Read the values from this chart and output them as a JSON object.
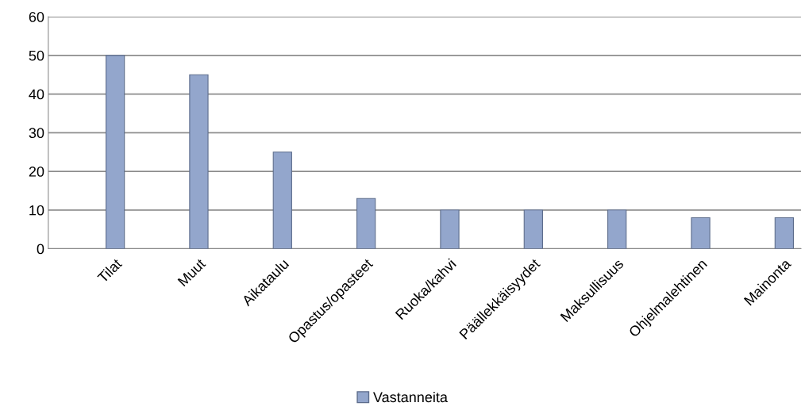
{
  "chart_data": {
    "type": "bar",
    "categories": [
      "Tilat",
      "Muut",
      "Aikataulu",
      "Opastus/opasteet",
      "Ruoka/kahvi",
      "Päällekkäisyydet",
      "Maksullisuus",
      "Ohjelmalehtinen",
      "Mainonta"
    ],
    "series": [
      {
        "name": "Vastanneita",
        "color": "#93a6cc",
        "values": [
          50,
          45,
          25,
          13,
          10,
          10,
          10,
          8,
          8
        ]
      }
    ],
    "ylim": [
      0,
      60
    ],
    "yticks": [
      0,
      10,
      20,
      30,
      40,
      50,
      60
    ],
    "grid": "y",
    "legend": "bottom"
  }
}
